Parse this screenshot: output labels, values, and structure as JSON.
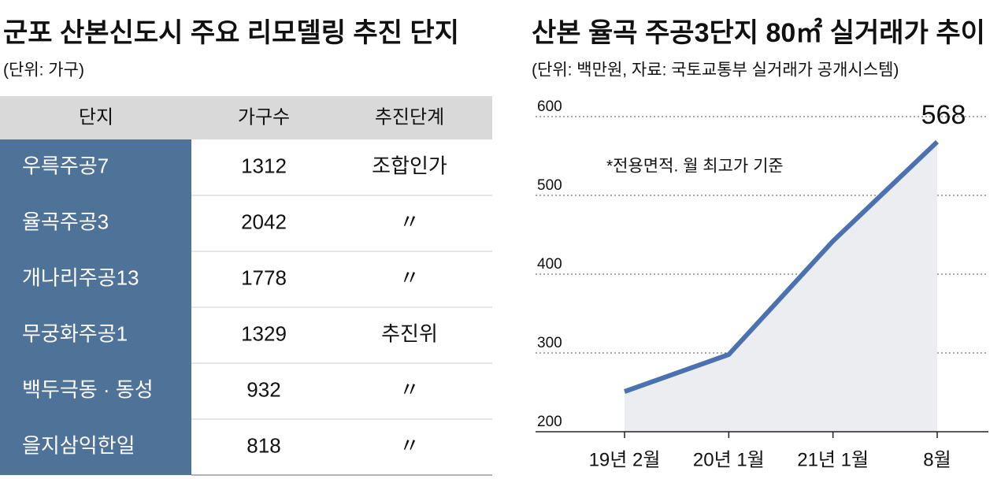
{
  "table": {
    "title": "군포 산본신도시 주요 리모델링 추진 단지",
    "subtitle": "(단위: 가구)",
    "header": [
      "단지",
      "가구수",
      "추진단계"
    ],
    "rows": [
      [
        "우륵주공7",
        1312,
        "조합인가"
      ],
      [
        "율곡주공3",
        2042,
        "〃"
      ],
      [
        "개나리주공13",
        1778,
        "〃"
      ],
      [
        "무궁화주공1",
        1329,
        "추진위"
      ],
      [
        "백두극동 · 동성",
        932,
        "〃"
      ],
      [
        "을지삼익한일",
        818,
        "〃"
      ]
    ]
  },
  "chart_data": {
    "type": "line",
    "title": "산본 율곡 주공3단지 80㎡ 실거래가 추이",
    "subtitle": "(단위: 백만원, 자료: 국토교통부 실거래가 공개시스템)",
    "annotation": "*전용면적. 월 최고가 기준",
    "categories": [
      "19년 2월",
      "20년 1월",
      "21년 1월",
      "8월"
    ],
    "values": [
      251,
      298,
      442,
      568
    ],
    "color": "#4a72b0",
    "area_color": "#ebedf0",
    "ylim": [
      200,
      600
    ],
    "yticks": [
      200,
      300,
      400,
      500,
      600
    ],
    "grid": true
  }
}
